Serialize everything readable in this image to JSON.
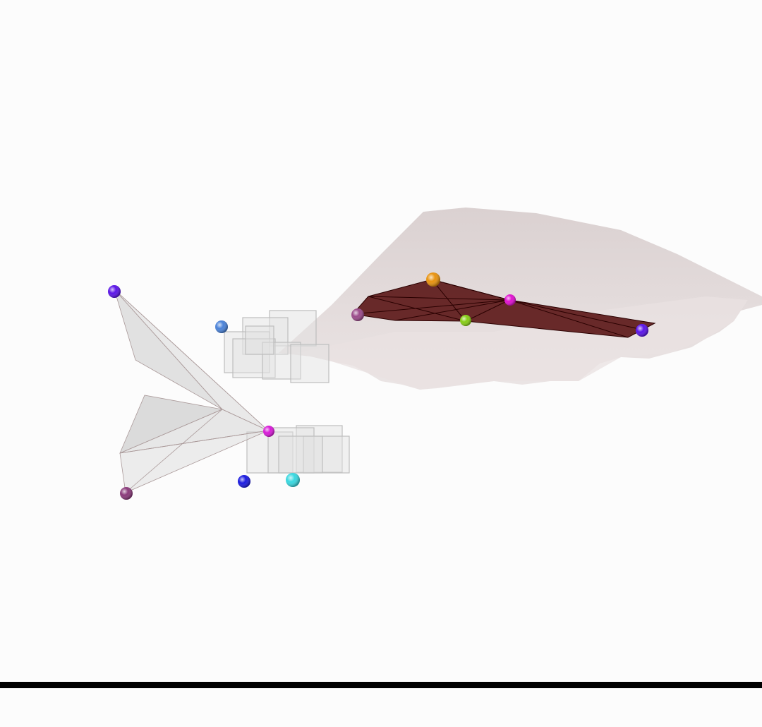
{
  "scene": {
    "background": "#fcfcfc",
    "hull_color": "#5a1515",
    "cloud_color": "#d6cccc",
    "ghost_color": "#d9d9d9",
    "markers": [
      {
        "name": "orange-marker",
        "color": "#e8920e"
      },
      {
        "name": "magenta-marker-right",
        "color": "#e010d0"
      },
      {
        "name": "green-marker",
        "color": "#86cc14"
      },
      {
        "name": "violet-marker-right",
        "color": "#5a14e8"
      },
      {
        "name": "mauve-marker-right",
        "color": "#9a4a8a"
      },
      {
        "name": "violet-marker-left",
        "color": "#5a14e8"
      },
      {
        "name": "steel-blue-marker",
        "color": "#4a82d8"
      },
      {
        "name": "magenta-marker-left",
        "color": "#d81ad8"
      },
      {
        "name": "mauve-marker-left",
        "color": "#8a3a7a"
      },
      {
        "name": "blue-marker",
        "color": "#1a1ae0"
      },
      {
        "name": "cyan-marker",
        "color": "#38d8e0"
      }
    ]
  }
}
